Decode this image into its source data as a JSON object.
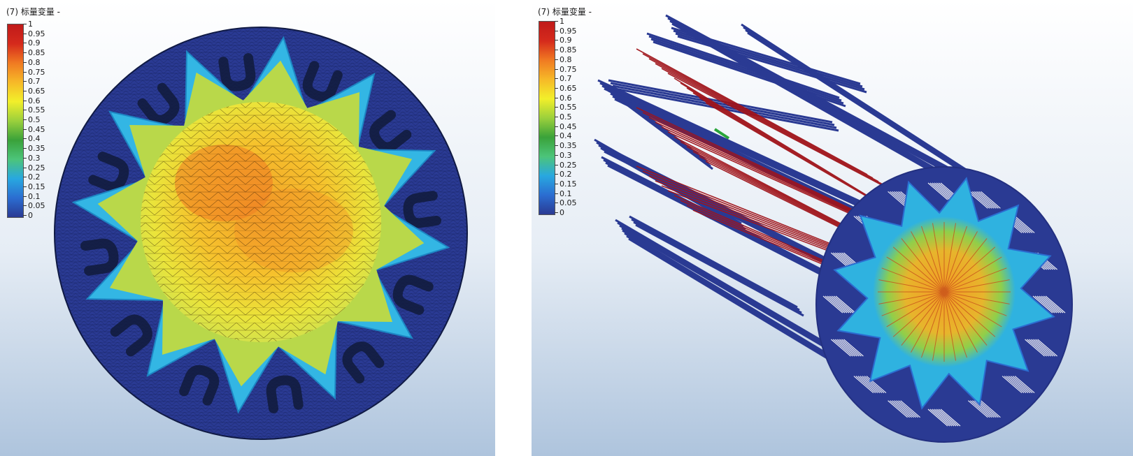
{
  "left_view": {
    "title": "(7) 标量变量 -",
    "legend": {
      "ticks": [
        "1",
        "0.95",
        "0.9",
        "0.85",
        "0.8",
        "0.75",
        "0.7",
        "0.65",
        "0.6",
        "0.55",
        "0.5",
        "0.45",
        "0.4",
        "0.35",
        "0.3",
        "0.25",
        "0.2",
        "0.15",
        "0.1",
        "0.05",
        "0"
      ]
    }
  },
  "right_view": {
    "title": "(7) 标量变量 -",
    "legend": {
      "ticks": [
        "1",
        "0.95",
        "0.9",
        "0.85",
        "0.8",
        "0.75",
        "0.7",
        "0.65",
        "0.6",
        "0.55",
        "0.5",
        "0.45",
        "0.4",
        "0.35",
        "0.3",
        "0.25",
        "0.2",
        "0.15",
        "0.1",
        "0.05",
        "0"
      ]
    }
  },
  "colormap": {
    "stops": [
      "#2a3a93",
      "#2b6dd1",
      "#28a8e0",
      "#4cc47a",
      "#3aa23a",
      "#9bd03c",
      "#f2ef2a",
      "#f6b928",
      "#f07a22",
      "#d52a1c",
      "#c01a1a"
    ]
  }
}
